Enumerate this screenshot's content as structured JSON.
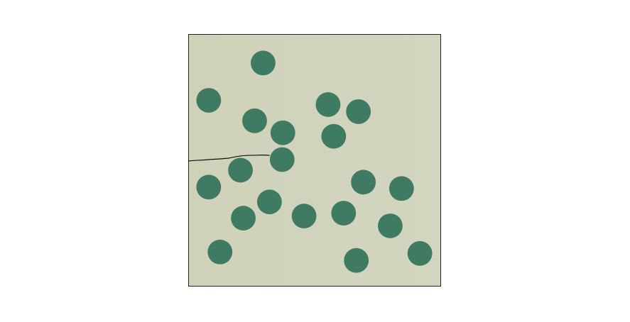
{
  "colors": {
    "page_background": "#ffffff",
    "arena_fill": "#d1d2bb",
    "arena_border": "#222222",
    "obstacle_fill": "#3f7b63",
    "trajectory_stroke": "#111111"
  },
  "icons": {
    "obstacle": "circle-obstacle-icon",
    "path": "trajectory-line"
  }
}
